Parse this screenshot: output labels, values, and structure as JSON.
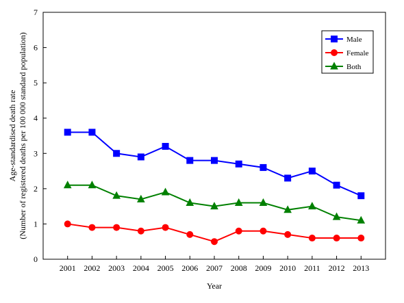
{
  "chart_data": {
    "type": "line",
    "categories": [
      "2001",
      "2002",
      "2003",
      "2004",
      "2005",
      "2006",
      "2007",
      "2008",
      "2009",
      "2010",
      "2011",
      "2012",
      "2013"
    ],
    "series": [
      {
        "name": "Male",
        "values": [
          3.6,
          3.6,
          3.0,
          2.9,
          3.2,
          2.8,
          2.8,
          2.7,
          2.6,
          2.3,
          2.5,
          2.1,
          1.8
        ],
        "color": "#0000ff",
        "marker": "square"
      },
      {
        "name": "Female",
        "values": [
          1.0,
          0.9,
          0.9,
          0.8,
          0.9,
          0.7,
          0.5,
          0.8,
          0.8,
          0.7,
          0.6,
          0.6,
          0.6
        ],
        "color": "#ff0000",
        "marker": "circle"
      },
      {
        "name": "Both",
        "values": [
          2.1,
          2.1,
          1.8,
          1.7,
          1.9,
          1.6,
          1.5,
          1.6,
          1.6,
          1.4,
          1.5,
          1.2,
          1.1
        ],
        "color": "#008000",
        "marker": "triangle"
      }
    ],
    "xlabel": "Year",
    "ylabel_line1": "Age-standardised death rate",
    "ylabel_line2": "(Number of registered deaths per 100 000 standard population)",
    "ylim": [
      0,
      7
    ],
    "yticks": [
      "0",
      "1",
      "2",
      "3",
      "4",
      "5",
      "6",
      "7"
    ],
    "grid": false,
    "legend_position": "top-right"
  }
}
